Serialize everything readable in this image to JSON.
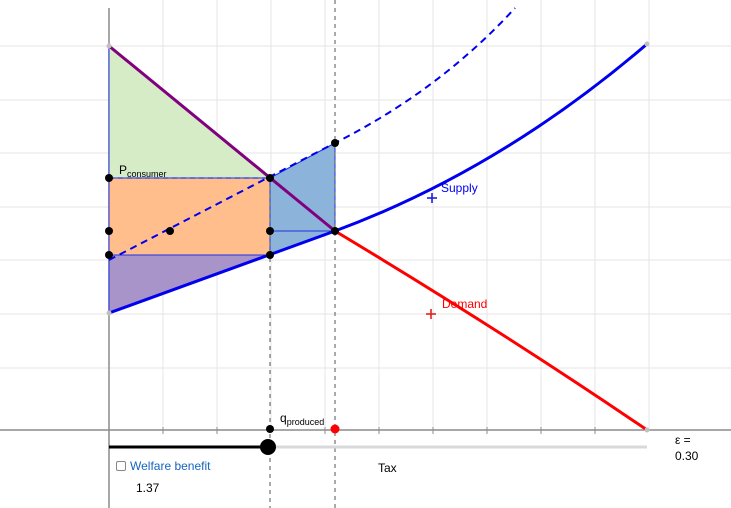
{
  "labels": {
    "p_consumer_main": "P",
    "p_consumer_sub": "consumer",
    "q_produced_main": "q",
    "q_produced_sub": "produced",
    "supply": "Supply",
    "demand": "Demand",
    "tax": "Tax",
    "epsilon_label": "ε =",
    "epsilon_value": "0.30"
  },
  "controls": {
    "welfare_benefit_label": "Welfare benefit",
    "welfare_benefit_value": "1.37",
    "welfare_benefit_checked": false
  },
  "colors": {
    "supply": "#0000ee",
    "demand": "#ff0000",
    "consumer_surplus": "#d6ecc6",
    "tax_revenue": "#ffbe8c",
    "producer_surplus": "#a894c8",
    "deadweight_loss": "#8cb3d9",
    "demand_shared_segment": "#800080",
    "tax_point": "#ff0000"
  }
}
